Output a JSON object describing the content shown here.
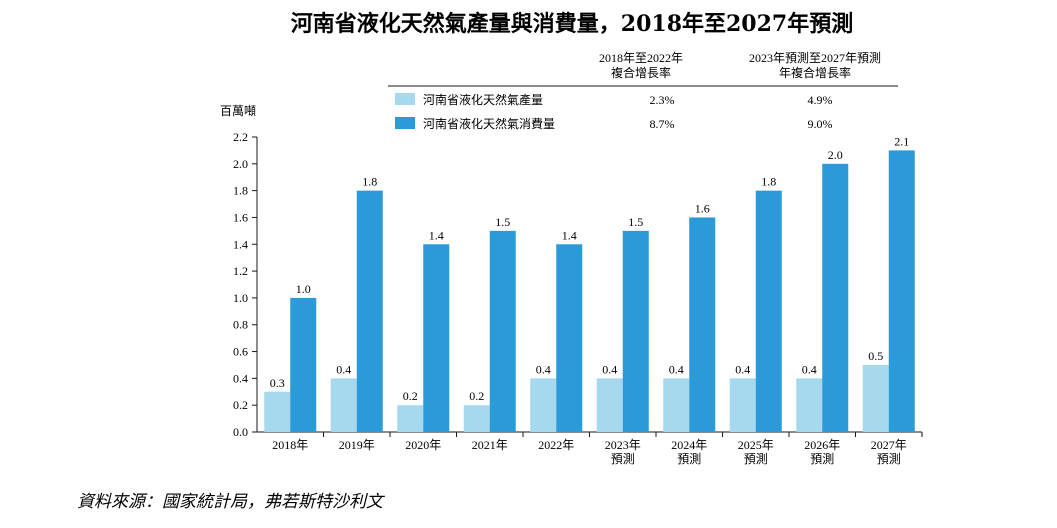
{
  "chart_data": {
    "type": "bar",
    "title": "河南省液化天然氣產量與消費量，2018年至2027年預測",
    "ylabel": "百萬噸",
    "ylim": [
      0,
      2.2
    ],
    "yticks": [
      "0.0",
      "0.2",
      "0.4",
      "0.6",
      "0.8",
      "1.0",
      "1.2",
      "1.4",
      "1.6",
      "1.8",
      "2.0",
      "2.2"
    ],
    "categories": [
      {
        "line1": "2018年",
        "line2": ""
      },
      {
        "line1": "2019年",
        "line2": ""
      },
      {
        "line1": "2020年",
        "line2": ""
      },
      {
        "line1": "2021年",
        "line2": ""
      },
      {
        "line1": "2022年",
        "line2": ""
      },
      {
        "line1": "2023年",
        "line2": "預測"
      },
      {
        "line1": "2024年",
        "line2": "預測"
      },
      {
        "line1": "2025年",
        "line2": "預測"
      },
      {
        "line1": "2026年",
        "line2": "預測"
      },
      {
        "line1": "2027年",
        "line2": "預測"
      }
    ],
    "series": [
      {
        "name": "河南省液化天然氣產量",
        "color": "#a6d9ee",
        "values": [
          0.3,
          0.4,
          0.2,
          0.2,
          0.4,
          0.4,
          0.4,
          0.4,
          0.4,
          0.5
        ],
        "labels": [
          "0.3",
          "0.4",
          "0.2",
          "0.2",
          "0.4",
          "0.4",
          "0.4",
          "0.4",
          "0.4",
          "0.5"
        ],
        "cagr_hist": "2.3%",
        "cagr_fcst": "4.9%"
      },
      {
        "name": "河南省液化天然氣消費量",
        "color": "#2a9ad8",
        "values": [
          1.0,
          1.8,
          1.4,
          1.5,
          1.4,
          1.5,
          1.6,
          1.8,
          2.0,
          2.1
        ],
        "labels": [
          "1.0",
          "1.8",
          "1.4",
          "1.5",
          "1.4",
          "1.5",
          "1.6",
          "1.8",
          "2.0",
          "2.1"
        ],
        "cagr_hist": "8.7%",
        "cagr_fcst": "9.0%"
      }
    ],
    "legend": {
      "header_hist": [
        "2018年至2022年",
        "複合增長率"
      ],
      "header_fcst": [
        "2023年預測至2027年預測",
        "年複合增長率"
      ]
    }
  },
  "source": "資料來源：國家統計局，弗若斯特沙利文"
}
